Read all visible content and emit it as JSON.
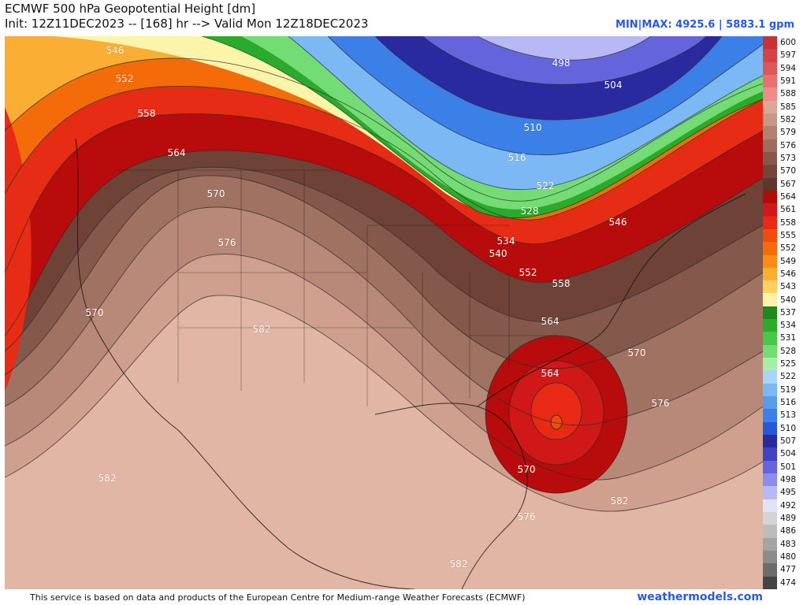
{
  "header": {
    "title": "ECMWF 500 hPa Geopotential Height [dm]",
    "subtitle": "Init: 12Z11DEC2023 -- [168] hr --> Valid Mon 12Z18DEC2023",
    "minmax": "MIN|MAX: 4925.6 | 5883.1 gpm"
  },
  "footer": {
    "disclaimer": "This service is based on data and products of the European Centre for Medium-range Weather Forecasts (ECMWF)",
    "brand": "weathermodels.com"
  },
  "colorbar": {
    "levels": [
      {
        "label": "600",
        "color": "#c83232"
      },
      {
        "label": "597",
        "color": "#d44444"
      },
      {
        "label": "594",
        "color": "#de5858"
      },
      {
        "label": "591",
        "color": "#e87070"
      },
      {
        "label": "588",
        "color": "#ee8c8c"
      },
      {
        "label": "585",
        "color": "#d8a898"
      },
      {
        "label": "582",
        "color": "#c69888"
      },
      {
        "label": "579",
        "color": "#b08070"
      },
      {
        "label": "576",
        "color": "#9c6c5c"
      },
      {
        "label": "573",
        "color": "#86584a"
      },
      {
        "label": "570",
        "color": "#72463a"
      },
      {
        "label": "567",
        "color": "#60362c"
      },
      {
        "label": "564",
        "color": "#b40a0a"
      },
      {
        "label": "561",
        "color": "#d01818"
      },
      {
        "label": "558",
        "color": "#e82a14"
      },
      {
        "label": "555",
        "color": "#f04c0c"
      },
      {
        "label": "552",
        "color": "#f46c0a"
      },
      {
        "label": "549",
        "color": "#f88c14"
      },
      {
        "label": "546",
        "color": "#fbae34"
      },
      {
        "label": "543",
        "color": "#fcd060"
      },
      {
        "label": "540",
        "color": "#fcf4a8"
      },
      {
        "label": "537",
        "color": "#1e8a1e"
      },
      {
        "label": "534",
        "color": "#2caa2c"
      },
      {
        "label": "531",
        "color": "#48c848"
      },
      {
        "label": "528",
        "color": "#74dc74"
      },
      {
        "label": "525",
        "color": "#a6eea6"
      },
      {
        "label": "522",
        "color": "#a8d4fa"
      },
      {
        "label": "519",
        "color": "#7cb8f4"
      },
      {
        "label": "516",
        "color": "#589cee"
      },
      {
        "label": "513",
        "color": "#3a80e6"
      },
      {
        "label": "510",
        "color": "#2858d8"
      },
      {
        "label": "507",
        "color": "#2a2aa0"
      },
      {
        "label": "504",
        "color": "#4242c4"
      },
      {
        "label": "501",
        "color": "#6464dc"
      },
      {
        "label": "498",
        "color": "#8c8cea"
      },
      {
        "label": "495",
        "color": "#b8b8f4"
      },
      {
        "label": "492",
        "color": "#e2e2f8"
      },
      {
        "label": "489",
        "color": "#d4d4d4"
      },
      {
        "label": "486",
        "color": "#bcbcbc"
      },
      {
        "label": "483",
        "color": "#a4a4a4"
      },
      {
        "label": "480",
        "color": "#8c8c8c"
      },
      {
        "label": "477",
        "color": "#6c6c6c"
      },
      {
        "label": "474",
        "color": "#444444"
      }
    ]
  },
  "contour_labels": [
    {
      "text": "546"
    },
    {
      "text": "552"
    },
    {
      "text": "558"
    },
    {
      "text": "564"
    },
    {
      "text": "570"
    },
    {
      "text": "576"
    },
    {
      "text": "570"
    },
    {
      "text": "582"
    },
    {
      "text": "582"
    },
    {
      "text": "498"
    },
    {
      "text": "504"
    },
    {
      "text": "510"
    },
    {
      "text": "516"
    },
    {
      "text": "522"
    },
    {
      "text": "528"
    },
    {
      "text": "534"
    },
    {
      "text": "540"
    },
    {
      "text": "546"
    },
    {
      "text": "552"
    },
    {
      "text": "558"
    },
    {
      "text": "564"
    },
    {
      "text": "564"
    },
    {
      "text": "570"
    },
    {
      "text": "576"
    },
    {
      "text": "570"
    },
    {
      "text": "576"
    },
    {
      "text": "582"
    },
    {
      "text": "582"
    }
  ]
}
